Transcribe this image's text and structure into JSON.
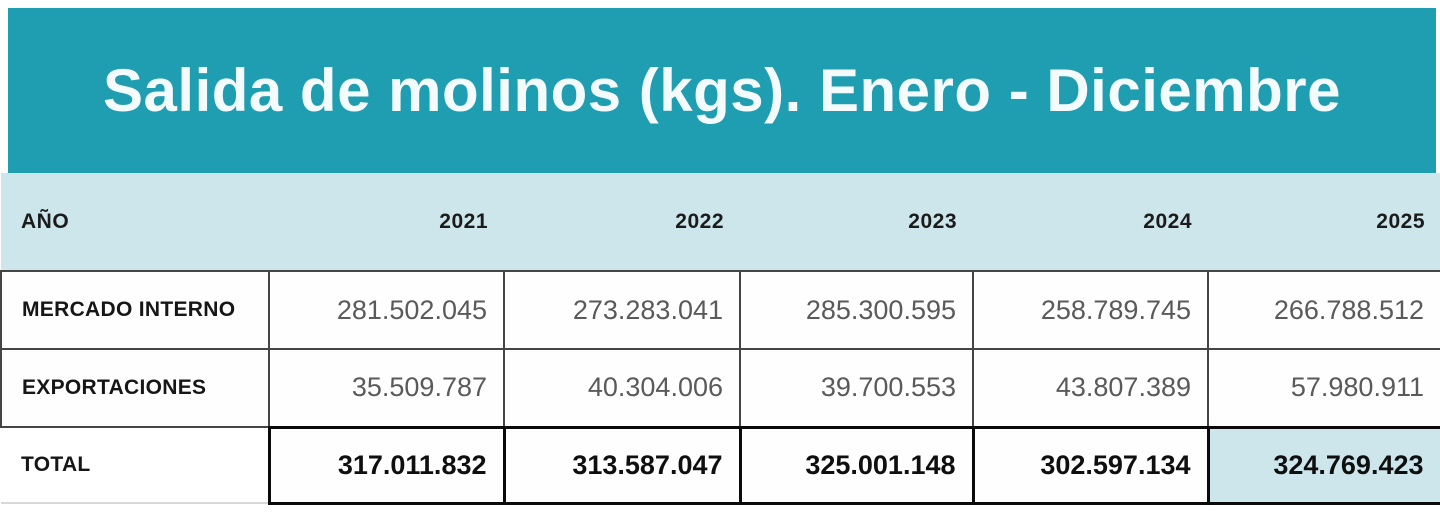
{
  "title": "Salida de molinos (kgs). Enero - Diciembre",
  "colors": {
    "banner_bg": "#1f9eb2",
    "title_color": "#f4fbfc",
    "header_bg": "#cde6ec",
    "highlight_bg": "#cde6ec"
  },
  "table": {
    "year_header_label": "AÑO",
    "years": [
      "2021",
      "2022",
      "2023",
      "2024",
      "2025"
    ],
    "rows": [
      {
        "label": "MERCADO INTERNO",
        "values": [
          "281.502.045",
          "273.283.041",
          "285.300.595",
          "258.789.745",
          "266.788.512"
        ]
      },
      {
        "label": "EXPORTACIONES",
        "values": [
          "35.509.787",
          "40.304.006",
          "39.700.553",
          "43.807.389",
          "57.980.911"
        ]
      }
    ],
    "total_row": {
      "label": "TOTAL",
      "values": [
        "317.011.832",
        "313.587.047",
        "325.001.148",
        "302.597.134",
        "324.769.423"
      ]
    }
  },
  "chart_data": {
    "type": "table",
    "title": "Salida de molinos (kgs). Enero - Diciembre",
    "categories": [
      "2021",
      "2022",
      "2023",
      "2024",
      "2025"
    ],
    "series": [
      {
        "name": "MERCADO INTERNO",
        "values": [
          281502045,
          273283041,
          285300595,
          258789745,
          266788512
        ]
      },
      {
        "name": "EXPORTACIONES",
        "values": [
          35509787,
          40304006,
          39700553,
          43807389,
          57980911
        ]
      },
      {
        "name": "TOTAL",
        "values": [
          317011832,
          313587047,
          325001148,
          302597134,
          324769423
        ]
      }
    ],
    "notes": "Last column (2025) of TOTAL row is highlighted with light blue background"
  }
}
